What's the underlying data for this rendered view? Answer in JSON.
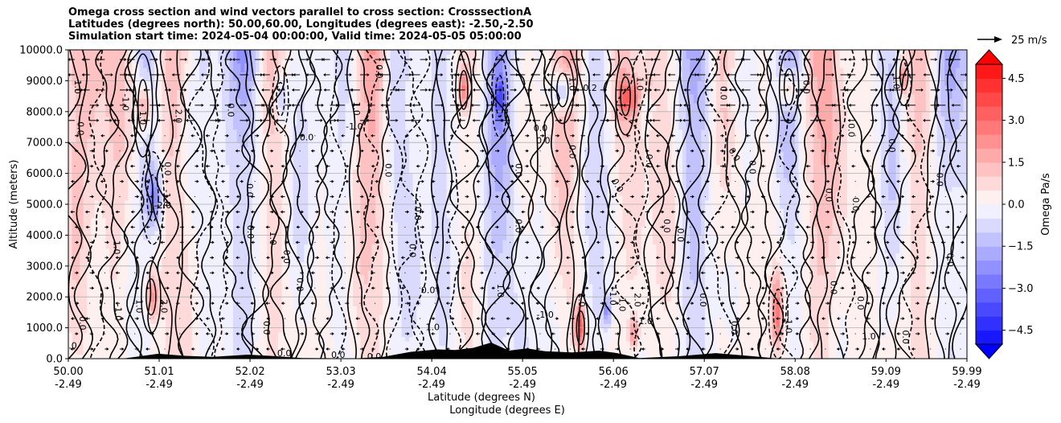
{
  "chart_data": {
    "type": "heatmap",
    "title_lines": [
      "Omega cross section and wind vectors parallel to cross section: CrosssectionA",
      "Latitudes (degrees north): 50.00,60.00, Longitudes (degrees east): -2.50,-2.50",
      "Simulation start time: 2024-05-04 00:00:00, Valid time: 2024-05-05 05:00:00"
    ],
    "ylabel": "Altitude (meters)",
    "xlabel_lat": "Latitude (degrees N)",
    "xlabel_lon": "Longitude (degrees E)",
    "ylim": [
      0,
      10000
    ],
    "xlim": [
      50.0,
      59.99
    ],
    "y_ticks": [
      0,
      1000,
      2000,
      3000,
      4000,
      5000,
      6000,
      7000,
      8000,
      9000,
      10000
    ],
    "y_tick_labels": [
      "0.0",
      "1000.0",
      "2000.0",
      "3000.0",
      "4000.0",
      "5000.0",
      "6000.0",
      "7000.0",
      "8000.0",
      "9000.0",
      "10000.0"
    ],
    "x_ticks": [
      50.0,
      51.01,
      52.02,
      53.03,
      54.04,
      55.05,
      56.06,
      57.07,
      58.08,
      59.09,
      59.99
    ],
    "x_tick_labels_lat": [
      "50.00",
      "51.01",
      "52.02",
      "53.03",
      "54.04",
      "55.05",
      "56.06",
      "57.07",
      "58.08",
      "59.09",
      "59.99"
    ],
    "x_tick_labels_lon": [
      "-2.49",
      "-2.49",
      "-2.49",
      "-2.49",
      "-2.49",
      "-2.49",
      "-2.49",
      "-2.49",
      "-2.49",
      "-2.49",
      "-2.49"
    ],
    "grid": true,
    "colorbar": {
      "label": "Omega Pa/s",
      "min": -5.0,
      "max": 5.0,
      "levels": 20,
      "tick_values": [
        4.5,
        3.0,
        1.5,
        0.0,
        -1.5,
        -3.0,
        -4.5
      ],
      "tick_labels": [
        "4.5",
        "3.0",
        "1.5",
        "0.0",
        "−1.5",
        "−3.0",
        "−4.5"
      ],
      "low_color": "#0000ff",
      "high_color": "#ff0000"
    },
    "quiver_key": "25 m/s",
    "contour_labels": [
      {
        "text": "0.0",
        "lat": 50.13,
        "alt": 7450,
        "rot": -90
      },
      {
        "text": "1.0",
        "lat": 50.1,
        "alt": 8800,
        "rot": -90
      },
      {
        "text": "-1.0",
        "lat": 50.63,
        "alt": 8300,
        "rot": -90
      },
      {
        "text": "1.0",
        "lat": 50.82,
        "alt": 7800,
        "rot": -90
      },
      {
        "text": "-2.0",
        "lat": 51.05,
        "alt": 4950,
        "rot": 0
      },
      {
        "text": "0.0",
        "lat": 51.1,
        "alt": 6150,
        "rot": -90
      },
      {
        "text": "-1.0",
        "lat": 51.09,
        "alt": 5200,
        "rot": -90
      },
      {
        "text": "2.0",
        "lat": 51.22,
        "alt": 7850,
        "rot": -90
      },
      {
        "text": "1.0",
        "lat": 50.53,
        "alt": 3600,
        "rot": -90
      },
      {
        "text": "1.0",
        "lat": 50.78,
        "alt": 1700,
        "rot": -90
      },
      {
        "text": "2.0",
        "lat": 51.06,
        "alt": 1700,
        "rot": -90
      },
      {
        "text": "-1.0",
        "lat": 50.55,
        "alt": 1500,
        "rot": -90
      },
      {
        "text": "0.0",
        "lat": 50.15,
        "alt": 1150,
        "rot": -90
      },
      {
        "text": "-1.0",
        "lat": 50.0,
        "alt": 400,
        "rot": 0
      },
      {
        "text": "0.0",
        "lat": 51.8,
        "alt": 8050,
        "rot": -90
      },
      {
        "text": "0.0",
        "lat": 52.65,
        "alt": 7150,
        "rot": 0
      },
      {
        "text": "0.0",
        "lat": 52.01,
        "alt": 5450,
        "rot": -90
      },
      {
        "text": "0.0",
        "lat": 52.02,
        "alt": 4100,
        "rot": -90
      },
      {
        "text": "1.0",
        "lat": 52.27,
        "alt": 3900,
        "rot": -90
      },
      {
        "text": "0.0",
        "lat": 52.42,
        "alt": 3300,
        "rot": -90
      },
      {
        "text": "0.0",
        "lat": 52.57,
        "alt": 2400,
        "rot": -90
      },
      {
        "text": "0.0",
        "lat": 52.2,
        "alt": 1000,
        "rot": -90
      },
      {
        "text": "0.0",
        "lat": 53.45,
        "alt": 9300,
        "rot": -90
      },
      {
        "text": "1.0",
        "lat": 53.2,
        "alt": 8100,
        "rot": -90
      },
      {
        "text": "-1.0",
        "lat": 53.18,
        "alt": 7500,
        "rot": 0
      },
      {
        "text": "0.0",
        "lat": 53.55,
        "alt": 6100,
        "rot": -90
      },
      {
        "text": "0.0",
        "lat": 53.88,
        "alt": 4700,
        "rot": -90
      },
      {
        "text": "0.0",
        "lat": 53.82,
        "alt": 3500,
        "rot": -90
      },
      {
        "text": "0.0",
        "lat": 54.0,
        "alt": 2200,
        "rot": 0
      },
      {
        "text": "1.0",
        "lat": 54.05,
        "alt": 1000,
        "rot": 0
      },
      {
        "text": "0.0",
        "lat": 53.4,
        "alt": 50,
        "rot": 0
      },
      {
        "text": "0.0",
        "lat": 53.0,
        "alt": 100,
        "rot": 0
      },
      {
        "text": "0.0",
        "lat": 52.4,
        "alt": 150,
        "rot": 0
      },
      {
        "text": "0.0",
        "lat": 55.25,
        "alt": 7450,
        "rot": 0
      },
      {
        "text": "0.0",
        "lat": 55.28,
        "alt": 7050,
        "rot": 0
      },
      {
        "text": "0.2",
        "lat": 55.8,
        "alt": 8750,
        "rot": 0
      },
      {
        "text": "1.0",
        "lat": 55.6,
        "alt": 8900,
        "rot": -90
      },
      {
        "text": "0.0",
        "lat": 55.0,
        "alt": 6100,
        "rot": -90
      },
      {
        "text": "0.0",
        "lat": 55.6,
        "alt": 6700,
        "rot": -90
      },
      {
        "text": "0.0",
        "lat": 56.45,
        "alt": 6400,
        "rot": -90
      },
      {
        "text": "0.0",
        "lat": 56.1,
        "alt": 5600,
        "rot": -60
      },
      {
        "text": "0.0",
        "lat": 55.0,
        "alt": 4300,
        "rot": -90
      },
      {
        "text": "1.0",
        "lat": 54.8,
        "alt": 2200,
        "rot": -90
      },
      {
        "text": "-1.0",
        "lat": 55.3,
        "alt": 1400,
        "rot": 0
      },
      {
        "text": "1.0",
        "lat": 55.7,
        "alt": 1900,
        "rot": -90
      },
      {
        "text": "-1.0",
        "lat": 56.05,
        "alt": 2000,
        "rot": -90
      },
      {
        "text": "1.0",
        "lat": 56.15,
        "alt": 1750,
        "rot": -90
      },
      {
        "text": "2.0",
        "lat": 56.32,
        "alt": 1900,
        "rot": -90
      },
      {
        "text": "1.0",
        "lat": 56.35,
        "alt": 8900,
        "rot": -90
      },
      {
        "text": "-1.0",
        "lat": 56.4,
        "alt": 1200,
        "rot": 0
      },
      {
        "text": "0.0",
        "lat": 56.65,
        "alt": 4300,
        "rot": -90
      },
      {
        "text": "0.0",
        "lat": 56.8,
        "alt": 4000,
        "rot": -90
      },
      {
        "text": "0.0",
        "lat": 57.05,
        "alt": 1900,
        "rot": -90
      },
      {
        "text": "0.0",
        "lat": 57.4,
        "alt": 1000,
        "rot": -90
      },
      {
        "text": "0.0",
        "lat": 57.28,
        "alt": 8600,
        "rot": -90
      },
      {
        "text": "0.0",
        "lat": 57.4,
        "alt": 6600,
        "rot": -60
      },
      {
        "text": "0.0",
        "lat": 57.6,
        "alt": 6200,
        "rot": -90
      },
      {
        "text": "0.0",
        "lat": 58.2,
        "alt": 8800,
        "rot": -90
      },
      {
        "text": "0.0",
        "lat": 58.45,
        "alt": 5300,
        "rot": -90
      },
      {
        "text": "0.0",
        "lat": 58.75,
        "alt": 5000,
        "rot": -90
      },
      {
        "text": "0.0",
        "lat": 58.7,
        "alt": 7400,
        "rot": -90
      },
      {
        "text": "0.0",
        "lat": 58.5,
        "alt": 2300,
        "rot": -90
      },
      {
        "text": "0.0",
        "lat": 58.8,
        "alt": 1800,
        "rot": -90
      },
      {
        "text": "-1.0",
        "lat": 58.0,
        "alt": 1100,
        "rot": -90
      },
      {
        "text": "-1.0",
        "lat": 59.2,
        "alt": 9000,
        "rot": -90
      },
      {
        "text": "1.0",
        "lat": 58.9,
        "alt": 700,
        "rot": 0
      },
      {
        "text": "0.0",
        "lat": 59.3,
        "alt": 700,
        "rot": -90
      },
      {
        "text": "0.0",
        "lat": 59.8,
        "alt": 3200,
        "rot": -90
      },
      {
        "text": "0.0",
        "lat": 59.68,
        "alt": 5800,
        "rot": -90
      },
      {
        "text": "0.0",
        "lat": 59.15,
        "alt": 6900,
        "rot": -90
      }
    ]
  }
}
